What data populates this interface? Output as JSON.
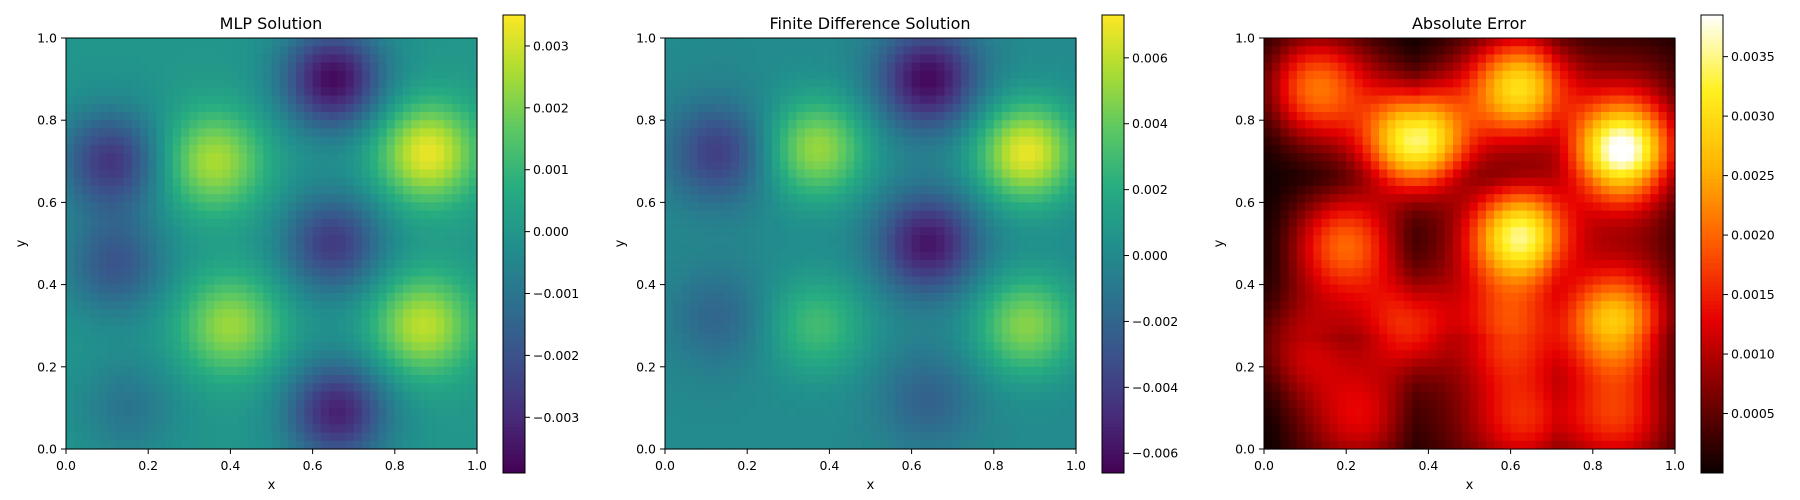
{
  "chart_data": [
    {
      "type": "heatmap",
      "title": "MLP Solution",
      "xlabel": "x",
      "ylabel": "y",
      "xlim": [
        0,
        1
      ],
      "ylim": [
        0,
        1
      ],
      "xticks": [
        "0.0",
        "0.2",
        "0.4",
        "0.6",
        "0.8",
        "1.0"
      ],
      "yticks": [
        "0.0",
        "0.2",
        "0.4",
        "0.6",
        "0.8",
        "1.0"
      ],
      "grid": false,
      "colormap": "viridis",
      "colorbar": {
        "vmin": -0.0039,
        "vmax": 0.0035,
        "ticks": [
          -0.003,
          -0.002,
          -0.001,
          0.0,
          0.001,
          0.002,
          0.003
        ],
        "tick_labels": [
          "−0.003",
          "−0.002",
          "−0.001",
          "0.000",
          "0.001",
          "0.002",
          "0.003"
        ]
      },
      "blobs": [
        {
          "x": 0.36,
          "y": 0.7,
          "amplitude": 0.0026
        },
        {
          "x": 0.88,
          "y": 0.72,
          "amplitude": 0.0033
        },
        {
          "x": 0.4,
          "y": 0.3,
          "amplitude": 0.0024
        },
        {
          "x": 0.87,
          "y": 0.3,
          "amplitude": 0.0028
        },
        {
          "x": 0.65,
          "y": 0.9,
          "amplitude": -0.0037
        },
        {
          "x": 0.65,
          "y": 0.5,
          "amplitude": -0.0026
        },
        {
          "x": 0.66,
          "y": 0.09,
          "amplitude": -0.0032
        },
        {
          "x": 0.11,
          "y": 0.7,
          "amplitude": -0.0027
        },
        {
          "x": 0.12,
          "y": 0.45,
          "amplitude": -0.0019
        },
        {
          "x": 0.15,
          "y": 0.1,
          "amplitude": -0.001
        }
      ]
    },
    {
      "type": "heatmap",
      "title": "Finite Difference Solution",
      "xlabel": "x",
      "ylabel": "y",
      "xlim": [
        0,
        1
      ],
      "ylim": [
        0,
        1
      ],
      "xticks": [
        "0.0",
        "0.2",
        "0.4",
        "0.6",
        "0.8",
        "1.0"
      ],
      "yticks": [
        "0.0",
        "0.2",
        "0.4",
        "0.6",
        "0.8",
        "1.0"
      ],
      "grid": false,
      "colormap": "viridis",
      "colorbar": {
        "vmin": -0.0066,
        "vmax": 0.0073,
        "ticks": [
          -0.006,
          -0.004,
          -0.002,
          0.0,
          0.002,
          0.004,
          0.006
        ],
        "tick_labels": [
          "−0.006",
          "−0.004",
          "−0.002",
          "0.000",
          "0.002",
          "0.004",
          "0.006"
        ]
      },
      "blobs": [
        {
          "x": 0.37,
          "y": 0.73,
          "amplitude": 0.0052
        },
        {
          "x": 0.88,
          "y": 0.72,
          "amplitude": 0.0069
        },
        {
          "x": 0.37,
          "y": 0.3,
          "amplitude": 0.003
        },
        {
          "x": 0.88,
          "y": 0.3,
          "amplitude": 0.0048
        },
        {
          "x": 0.64,
          "y": 0.9,
          "amplitude": -0.0063
        },
        {
          "x": 0.64,
          "y": 0.5,
          "amplitude": -0.0058
        },
        {
          "x": 0.64,
          "y": 0.12,
          "amplitude": -0.0022
        },
        {
          "x": 0.13,
          "y": 0.72,
          "amplitude": -0.004
        },
        {
          "x": 0.13,
          "y": 0.32,
          "amplitude": -0.002
        }
      ]
    },
    {
      "type": "heatmap",
      "title": "Absolute Error",
      "xlabel": "x",
      "ylabel": "y",
      "xlim": [
        0,
        1
      ],
      "ylim": [
        0,
        1
      ],
      "xticks": [
        "0.0",
        "0.2",
        "0.4",
        "0.6",
        "0.8",
        "1.0"
      ],
      "yticks": [
        "0.0",
        "0.2",
        "0.4",
        "0.6",
        "0.8",
        "1.0"
      ],
      "grid": false,
      "colormap": "hot",
      "colorbar": {
        "vmin": 0.0,
        "vmax": 0.00385,
        "ticks": [
          0.0005,
          0.001,
          0.0015,
          0.002,
          0.0025,
          0.003,
          0.0035
        ],
        "tick_labels": [
          "0.0005",
          "0.0010",
          "0.0015",
          "0.0020",
          "0.0025",
          "0.0030",
          "0.0035"
        ]
      },
      "blobs": [
        {
          "x": 0.37,
          "y": 0.75,
          "amplitude": 0.0034
        },
        {
          "x": 0.87,
          "y": 0.72,
          "amplitude": 0.0037
        },
        {
          "x": 0.63,
          "y": 0.52,
          "amplitude": 0.0031
        },
        {
          "x": 0.63,
          "y": 0.88,
          "amplitude": 0.0026
        },
        {
          "x": 0.12,
          "y": 0.88,
          "amplitude": 0.0016
        },
        {
          "x": 0.2,
          "y": 0.5,
          "amplitude": 0.0014
        },
        {
          "x": 0.85,
          "y": 0.3,
          "amplitude": 0.0026
        },
        {
          "x": 0.35,
          "y": 0.3,
          "amplitude": 0.0015
        },
        {
          "x": 0.6,
          "y": 0.28,
          "amplitude": 0.0016
        },
        {
          "x": 0.1,
          "y": 0.25,
          "amplitude": 0.001
        },
        {
          "x": 0.65,
          "y": 0.07,
          "amplitude": 0.0011
        },
        {
          "x": 0.85,
          "y": 0.08,
          "amplitude": 0.001
        },
        {
          "x": 0.25,
          "y": 0.08,
          "amplitude": 0.0007
        }
      ]
    }
  ]
}
